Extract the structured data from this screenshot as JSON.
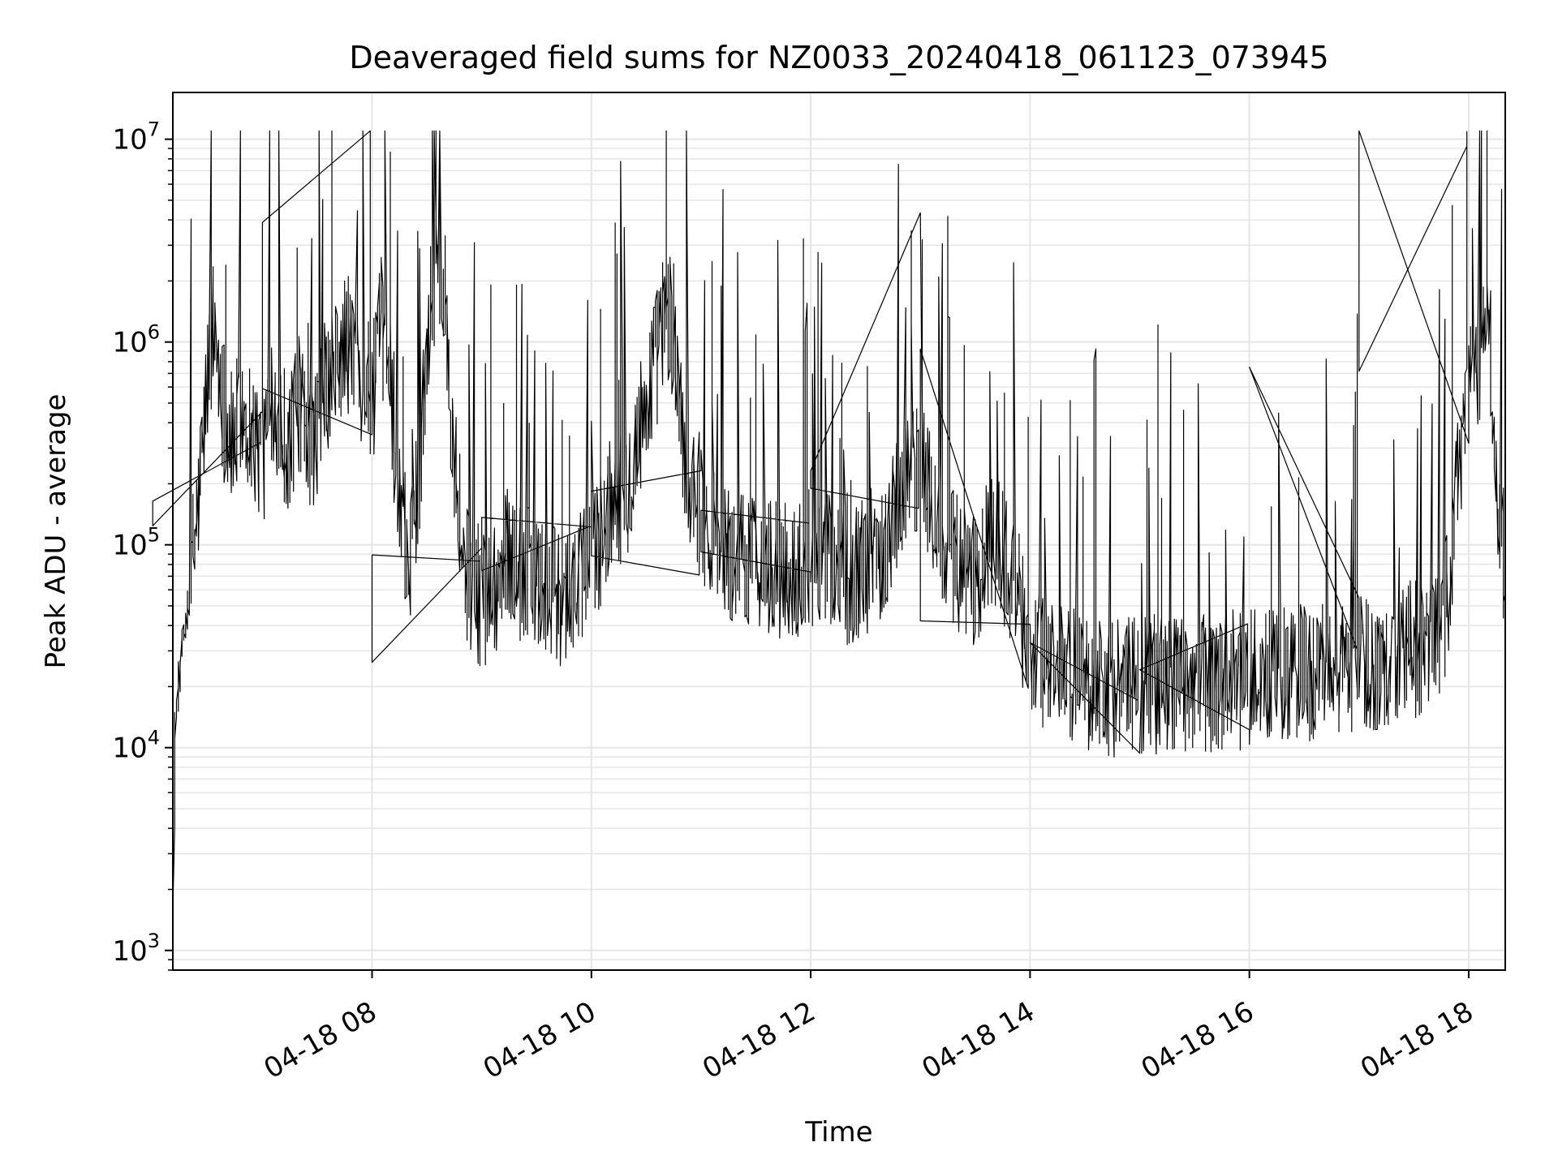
{
  "chart_data": {
    "type": "line",
    "title": "Deaveraged field sums for NZ0033_20240418_061123_073945",
    "xlabel": "Time",
    "ylabel": "Peak ADU - average",
    "yscale": "log",
    "ylim": [
      800,
      17000000
    ],
    "xlim": [
      "04-18 06:11",
      "04-18 18:20"
    ],
    "grid": true,
    "line_color": "#000000",
    "grid_color": "#e5e5e5",
    "x_ticks": [
      {
        "t": "04-18 08:00",
        "label": "04-18 08"
      },
      {
        "t": "04-18 10:00",
        "label": "04-18 10"
      },
      {
        "t": "04-18 12:00",
        "label": "04-18 12"
      },
      {
        "t": "04-18 14:00",
        "label": "04-18 14"
      },
      {
        "t": "04-18 16:00",
        "label": "04-18 16"
      },
      {
        "t": "04-18 18:00",
        "label": "04-18 18"
      }
    ],
    "y_ticks": [
      {
        "value": 1000,
        "base": "10",
        "exp": "3"
      },
      {
        "value": 10000,
        "base": "10",
        "exp": "4"
      },
      {
        "value": 100000,
        "base": "10",
        "exp": "5"
      },
      {
        "value": 1000000,
        "base": "10",
        "exp": "6"
      },
      {
        "value": 10000000,
        "base": "10",
        "exp": "7"
      }
    ],
    "series": [
      {
        "x": [
          "04-18 06:11",
          "04-18 06:12",
          "04-18 06:15",
          "04-18 06:18",
          "04-18 06:22",
          "04-18 06:26",
          "04-18 06:30",
          "04-18 06:33",
          "04-18 06:36",
          "04-18 06:40",
          "04-18 06:44",
          "04-18 06:48",
          "04-18 06:55",
          "04-18 07:00",
          "04-18 07:05",
          "04-18 07:10",
          "04-18 07:15",
          "04-18 07:20",
          "04-18 07:25",
          "04-18 07:30",
          "04-18 07:35",
          "04-18 07:40",
          "04-18 07:45",
          "04-18 07:50",
          "04-18 07:55",
          "04-18 08:00",
          "04-18 08:05",
          "04-18 08:10",
          "04-18 08:15",
          "04-18 08:20",
          "04-18 08:25",
          "04-18 08:30",
          "04-18 08:35",
          "04-18 08:40",
          "04-18 08:45",
          "04-18 08:50",
          "04-18 08:55",
          "04-18 09:00",
          "04-18 09:05",
          "04-18 09:10",
          "04-18 09:15",
          "04-18 09:20",
          "04-18 09:30",
          "04-18 09:40",
          "04-18 09:50",
          "04-18 10:00",
          "04-18 10:10",
          "04-18 10:20",
          "04-18 10:30",
          "04-18 10:40",
          "04-18 10:45",
          "04-18 10:50",
          "04-18 11:00",
          "04-18 11:10",
          "04-18 11:20",
          "04-18 11:30",
          "04-18 11:40",
          "04-18 11:50",
          "04-18 12:00",
          "04-18 12:10",
          "04-18 12:20",
          "04-18 12:30",
          "04-18 12:40",
          "04-18 12:50",
          "04-18 13:00",
          "04-18 13:10",
          "04-18 13:20",
          "04-18 13:30",
          "04-18 13:40",
          "04-18 13:50",
          "04-18 14:00",
          "04-18 14:15",
          "04-18 14:30",
          "04-18 14:45",
          "04-18 15:00",
          "04-18 15:15",
          "04-18 15:30",
          "04-18 15:45",
          "04-18 16:00",
          "04-18 16:15",
          "04-18 16:30",
          "04-18 16:45",
          "04-18 17:00",
          "04-18 17:15",
          "04-18 17:30",
          "04-18 17:40",
          "04-18 17:45",
          "04-18 17:50",
          "04-18 17:55",
          "04-18 18:00",
          "04-18 18:05",
          "04-18 18:10",
          "04-18 18:13",
          "04-18 18:16",
          "04-18 18:20"
        ],
        "y": [
          1000,
          12000,
          25000,
          40000,
          90000,
          200000,
          700000,
          1200000,
          800000,
          400000,
          300000,
          500000,
          350000,
          250000,
          600000,
          400000,
          300000,
          500000,
          250000,
          400000,
          600000,
          700000,
          1000000,
          900000,
          700000,
          500000,
          1200000,
          800000,
          150000,
          90000,
          200000,
          1000000,
          2500000,
          1500000,
          300000,
          80000,
          60000,
          55000,
          60000,
          70000,
          90000,
          75000,
          65000,
          55000,
          60000,
          80000,
          150000,
          200000,
          500000,
          1300000,
          1200000,
          300000,
          150000,
          100000,
          80000,
          90000,
          75000,
          70000,
          90000,
          80000,
          70000,
          80000,
          100000,
          200000,
          250000,
          120000,
          80000,
          60000,
          120000,
          70000,
          30000,
          25000,
          22000,
          20000,
          20000,
          21000,
          21000,
          21000,
          22000,
          22000,
          23000,
          24000,
          25000,
          28000,
          30000,
          32000,
          34000,
          80000,
          300000,
          500000,
          800000,
          1100000,
          700000,
          150000,
          80000
        ]
      }
    ]
  }
}
